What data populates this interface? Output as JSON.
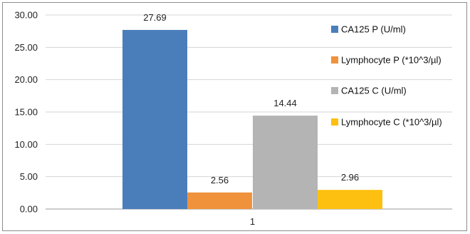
{
  "chart_data": {
    "type": "bar",
    "categories": [
      "1"
    ],
    "series": [
      {
        "name": "CA125  P (U/ml)",
        "values": [
          27.69
        ],
        "color": "#4a7ebb",
        "label": "27.69"
      },
      {
        "name": "Lymphocyte P  (*10^3/µl)",
        "values": [
          2.56
        ],
        "color": "#f0913c",
        "label": "2.56"
      },
      {
        "name": "CA125  C (U/ml)",
        "values": [
          14.44
        ],
        "color": "#b4b4b4",
        "label": "14.44"
      },
      {
        "name": "Lymphocyte C  (*10^3/µl)",
        "values": [
          2.96
        ],
        "color": "#fdc010",
        "label": "2.96"
      }
    ],
    "ylim": [
      0,
      30
    ],
    "yticks": [
      "0.00",
      "5.00",
      "10.00",
      "15.00",
      "20.00",
      "25.00",
      "30.00"
    ],
    "grid": true,
    "legend_position": "right"
  }
}
